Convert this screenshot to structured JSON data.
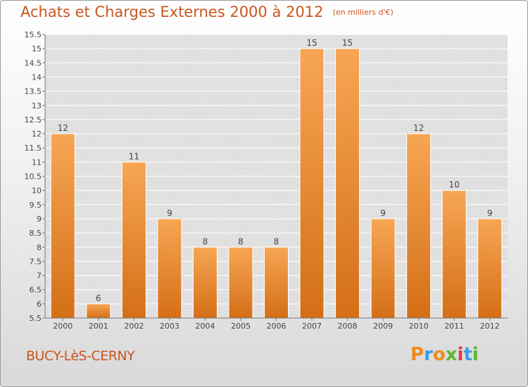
{
  "header": {
    "title": "Achats et Charges Externes 2000 à 2012",
    "subtitle": "(en milliers d'€)"
  },
  "footer": {
    "city": "BUCY-LèS-CERNY",
    "logo_letters": [
      "P",
      "r",
      "o",
      "x",
      "i",
      "t",
      "i"
    ]
  },
  "colors": {
    "accent": "#c8561e",
    "bar_light": "#f7a654",
    "bar_dark": "#d46f17",
    "logo": [
      "#f08a1c",
      "#3a9ee8",
      "#f08a1c",
      "#5cb832",
      "#e23b3b",
      "#3a9ee8",
      "#5cb832"
    ]
  },
  "chart_data": {
    "type": "bar",
    "categories": [
      "2000",
      "2001",
      "2002",
      "2003",
      "2004",
      "2005",
      "2006",
      "2007",
      "2008",
      "2009",
      "2010",
      "2011",
      "2012"
    ],
    "values": [
      12,
      6,
      11,
      9,
      8,
      8,
      8,
      15,
      15,
      9,
      12,
      10,
      9
    ],
    "data_labels": [
      "12",
      "6",
      "11",
      "9",
      "8",
      "8",
      "8",
      "15",
      "15",
      "9",
      "12",
      "10",
      "9"
    ],
    "y_ticks": [
      "5.5",
      "6",
      "6.5",
      "7",
      "7.5",
      "8",
      "8.5",
      "9",
      "9.5",
      "10",
      "10.5",
      "11",
      "11.5",
      "12",
      "12.5",
      "13",
      "13.5",
      "14",
      "14.5",
      "15",
      "15.5"
    ],
    "ylim": [
      5.5,
      15.5
    ],
    "grid": true,
    "xlabel": "",
    "ylabel": ""
  }
}
